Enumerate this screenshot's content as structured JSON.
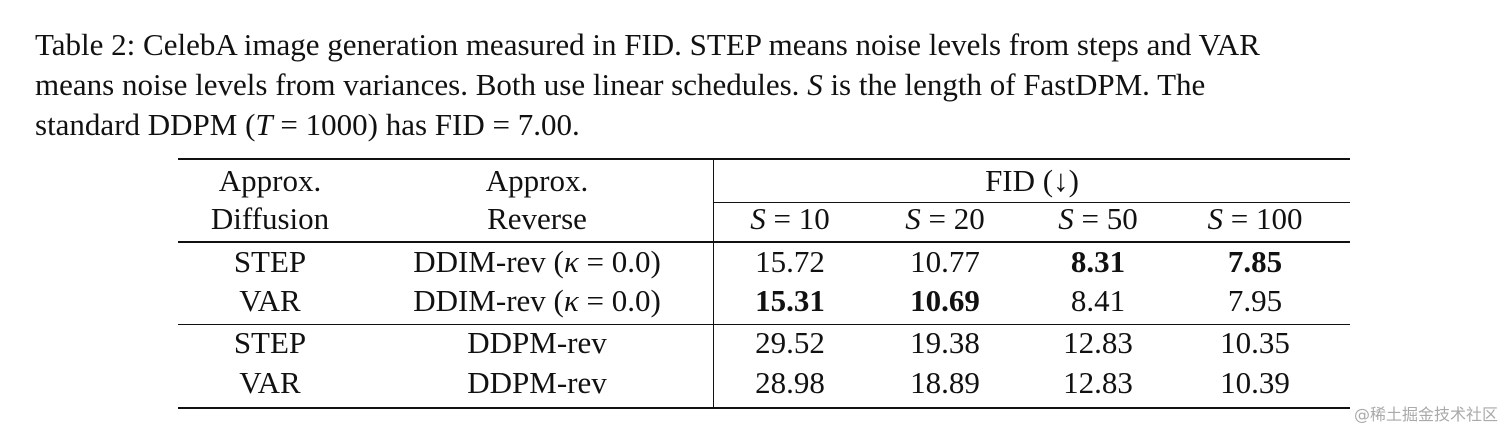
{
  "caption": [
    [
      {
        "text": "Table 2: CelebA image generation measured in FID. STEP means noise levels from steps and VAR",
        "italic": false
      }
    ],
    [
      {
        "text": "means noise levels from variances. Both use linear schedules. ",
        "italic": false
      },
      {
        "text": "S",
        "italic": true
      },
      {
        "text": " is the length of FastDPM. The",
        "italic": false
      }
    ],
    [
      {
        "text": "standard DDPM (",
        "italic": false
      },
      {
        "text": "T",
        "italic": true
      },
      {
        "text": " = 1000) has FID = 7.00.",
        "italic": false
      }
    ]
  ],
  "table": {
    "header": {
      "diffusion": [
        "Approx.",
        "Diffusion"
      ],
      "reverse": [
        "Approx.",
        "Reverse"
      ],
      "group": "FID (↓)",
      "columns": [
        [
          {
            "text": "S",
            "italic": true
          },
          {
            "text": " = 10",
            "italic": false
          }
        ],
        [
          {
            "text": "S",
            "italic": true
          },
          {
            "text": " = 20",
            "italic": false
          }
        ],
        [
          {
            "text": "S",
            "italic": true
          },
          {
            "text": " = 50",
            "italic": false
          }
        ],
        [
          {
            "text": "S",
            "italic": true
          },
          {
            "text": " = 100",
            "italic": false
          }
        ]
      ]
    },
    "rows": [
      {
        "diffusion": "STEP",
        "reverse": [
          {
            "text": "DDIM-rev (",
            "italic": false
          },
          {
            "text": "κ",
            "italic": true
          },
          {
            "text": " = 0.0)",
            "italic": false
          }
        ],
        "fid": [
          "15.72",
          "10.77",
          "8.31",
          "7.85"
        ],
        "bold": [
          false,
          false,
          true,
          true
        ]
      },
      {
        "diffusion": "VAR",
        "reverse": [
          {
            "text": "DDIM-rev (",
            "italic": false
          },
          {
            "text": "κ",
            "italic": true
          },
          {
            "text": " = 0.0)",
            "italic": false
          }
        ],
        "fid": [
          "15.31",
          "10.69",
          "8.41",
          "7.95"
        ],
        "bold": [
          true,
          true,
          false,
          false
        ]
      },
      {
        "diffusion": "STEP",
        "reverse": [
          {
            "text": "DDPM-rev",
            "italic": false
          }
        ],
        "fid": [
          "29.52",
          "19.38",
          "12.83",
          "10.35"
        ],
        "bold": [
          false,
          false,
          false,
          false
        ]
      },
      {
        "diffusion": "VAR",
        "reverse": [
          {
            "text": "DDPM-rev",
            "italic": false
          }
        ],
        "fid": [
          "28.98",
          "18.89",
          "12.83",
          "10.39"
        ],
        "bold": [
          false,
          false,
          false,
          false
        ]
      }
    ]
  },
  "watermark": "@稀土掘金技术社区"
}
